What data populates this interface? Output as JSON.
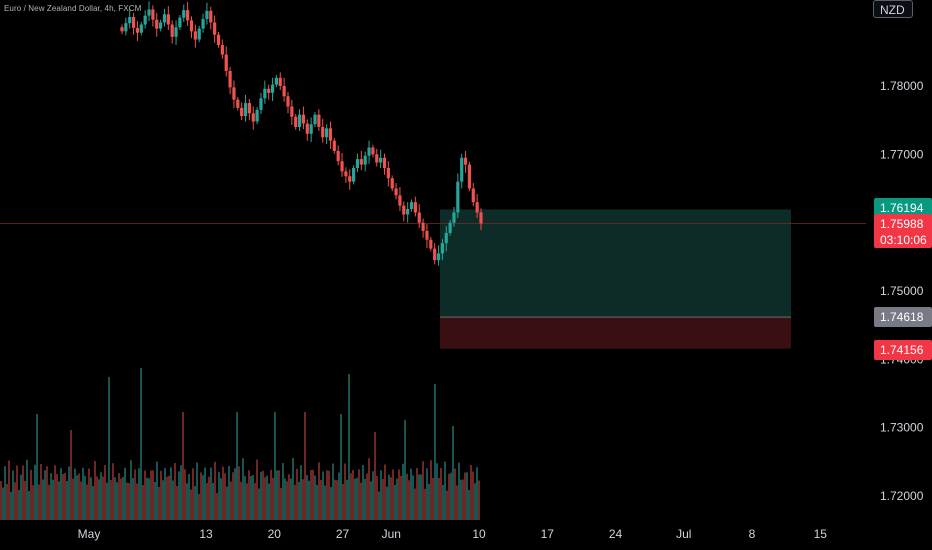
{
  "title": "Euro / New Zealand Dollar, 4h, FXCM",
  "currency_button": "NZD",
  "colors": {
    "background": "#000000",
    "up": "#26a69a",
    "down": "#ef5350",
    "vol_up": "#1d6b64",
    "vol_down": "#8c2f2d",
    "profit_zone": "#0d2b27",
    "loss_zone": "#3a0f12",
    "price_line": "#7a2a2a",
    "axis_text": "#d1d4dc"
  },
  "chart_data": {
    "type": "candlestick",
    "title": "Euro / New Zealand Dollar, 4h, FXCM",
    "y_ticks": [
      "1.78000",
      "1.77000",
      "1.75000",
      "1.74000",
      "1.73000",
      "1.72000"
    ],
    "y_tick_values": [
      1.78,
      1.77,
      1.75,
      1.74,
      1.73,
      1.72
    ],
    "ylim": [
      1.7175,
      1.7915
    ],
    "x_ticks": [
      "May",
      "13",
      "20",
      "27",
      "Jun",
      "10",
      "17",
      "24",
      "Jul",
      "8",
      "15"
    ],
    "x_tick_dates": [
      "2024-05-01",
      "2024-05-13",
      "2024-05-20",
      "2024-05-27",
      "2024-06-01",
      "2024-06-10",
      "2024-06-17",
      "2024-06-24",
      "2024-07-01",
      "2024-07-08",
      "2024-07-15"
    ],
    "price_labels": [
      {
        "value": "1.76194",
        "style": "green"
      },
      {
        "value": "1.75988",
        "style": "red",
        "countdown": "03:10:06"
      },
      {
        "value": "1.74618",
        "style": "gray"
      },
      {
        "value": "1.74156",
        "style": "red"
      }
    ],
    "position": {
      "type": "long",
      "entry": 1.74618,
      "target": 1.76194,
      "stop": 1.74156,
      "start_date": "2024-06-06",
      "end_date": "2024-07-12"
    },
    "current_price": 1.75988,
    "candles_close_path": [
      1.788,
      1.7892,
      1.7901,
      1.7885,
      1.7878,
      1.789,
      1.7903,
      1.7912,
      1.7897,
      1.7884,
      1.7893,
      1.7905,
      1.789,
      1.7872,
      1.7886,
      1.79,
      1.7911,
      1.7896,
      1.788,
      1.7868,
      1.7884,
      1.7898,
      1.791,
      1.7893,
      1.7875,
      1.786,
      1.7846,
      1.7822,
      1.7798,
      1.778,
      1.7768,
      1.7756,
      1.7775,
      1.776,
      1.7748,
      1.7765,
      1.7782,
      1.7796,
      1.779,
      1.7802,
      1.7812,
      1.78,
      1.7785,
      1.777,
      1.7755,
      1.774,
      1.7758,
      1.7745,
      1.773,
      1.7744,
      1.7758,
      1.774,
      1.7725,
      1.7738,
      1.772,
      1.7705,
      1.769,
      1.7675,
      1.7668,
      1.766,
      1.768,
      1.7693,
      1.7685,
      1.7698,
      1.771,
      1.77,
      1.7688,
      1.7695,
      1.768,
      1.7665,
      1.765,
      1.764,
      1.7625,
      1.7612,
      1.762,
      1.763,
      1.7615,
      1.76,
      1.7588,
      1.7575,
      1.7562,
      1.7545,
      1.7555,
      1.757,
      1.7585,
      1.76,
      1.7615,
      1.766,
      1.7695,
      1.7685,
      1.765,
      1.763,
      1.7615,
      1.7599
    ],
    "volume_heights": [
      52,
      38,
      61,
      44,
      70,
      35,
      58,
      49,
      66,
      40,
      55,
      62,
      48,
      71,
      36,
      59,
      45,
      67,
      53,
      42,
      64,
      50,
      57,
      69,
      39,
      61,
      47,
      73,
      56,
      41,
      65,
      52,
      60,
      44,
      70,
      38,
      55,
      63,
      49,
      58,
      42,
      67,
      51,
      46,
      62,
      57,
      40,
      68,
      54,
      45,
      61,
      50,
      72,
      43,
      59,
      48,
      65,
      53,
      41,
      60,
      47,
      56,
      63,
      50,
      44,
      69,
      52,
      58,
      46,
      61,
      55,
      40,
      66,
      51,
      45,
      62,
      57,
      48,
      70,
      43,
      59,
      53,
      64,
      47,
      55,
      61,
      50,
      68,
      44,
      58,
      73,
      49,
      57,
      45
    ],
    "volume_spikes": [
      [
        18,
        58
      ],
      [
        35,
        42
      ],
      [
        54,
        95
      ],
      [
        70,
        104
      ],
      [
        91,
        60
      ],
      [
        118,
        60
      ],
      [
        137,
        60
      ],
      [
        152,
        60
      ],
      [
        170,
        58
      ],
      [
        174,
        98
      ],
      [
        187,
        40
      ],
      [
        202,
        52
      ],
      [
        217,
        88
      ],
      [
        226,
        46
      ]
    ]
  }
}
